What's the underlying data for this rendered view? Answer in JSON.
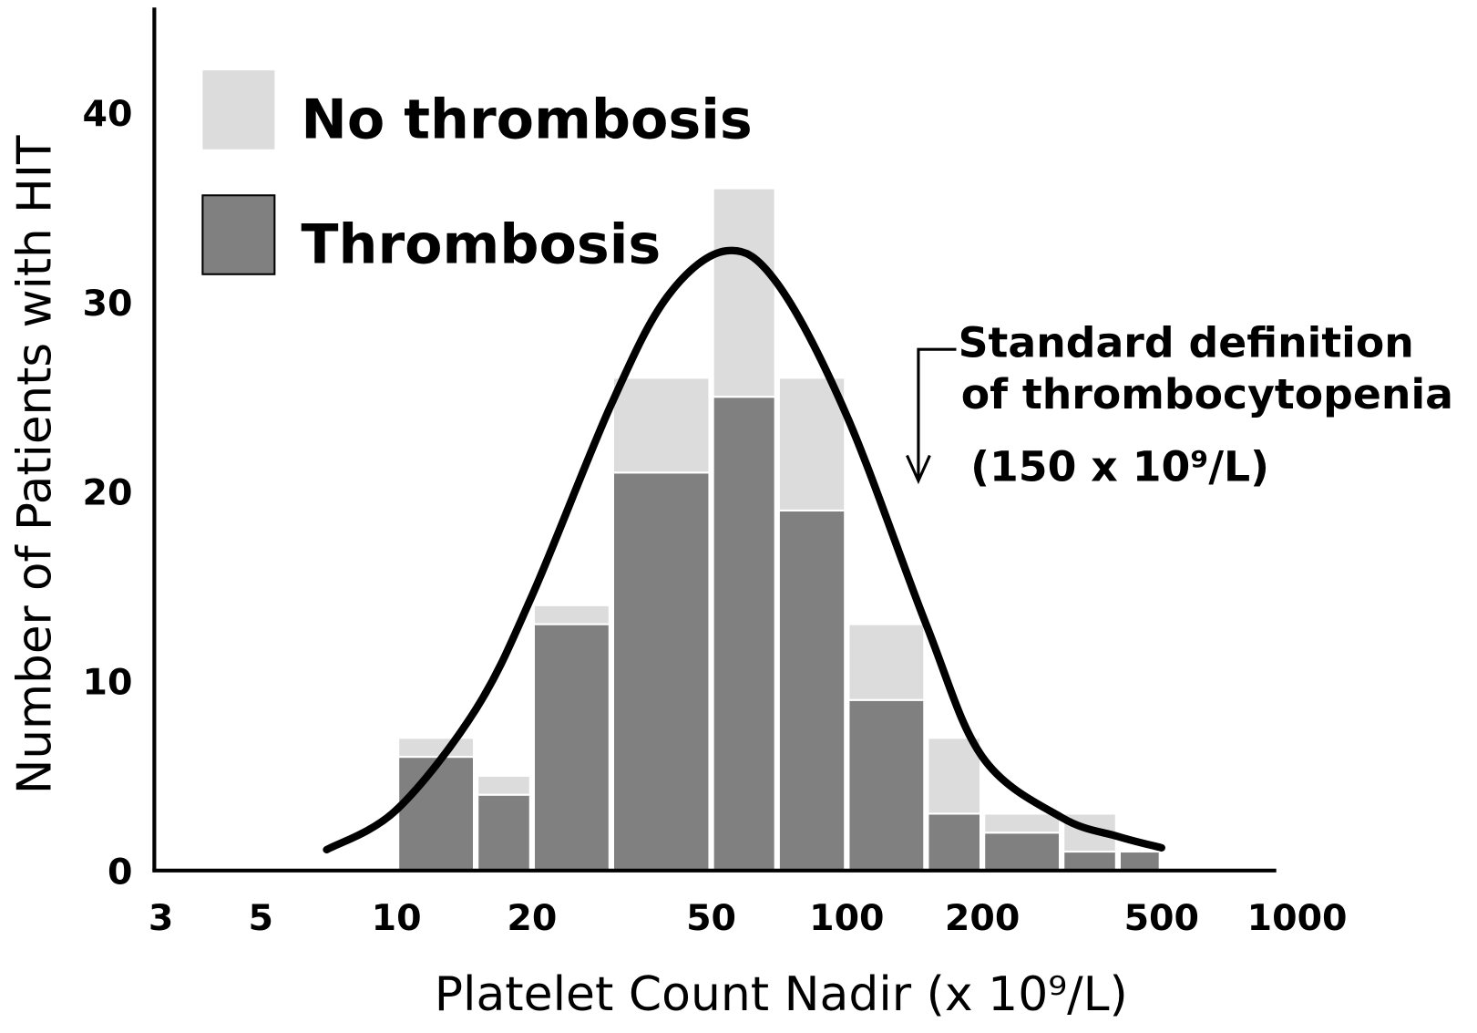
{
  "chart_data": {
    "type": "histogram",
    "bins": [
      10,
      15,
      20,
      30,
      50,
      70,
      100,
      150,
      200,
      300,
      400,
      500
    ],
    "series": [
      {
        "name": "Thrombosis",
        "color": "#808080",
        "values": [
          6,
          4,
          13,
          21,
          25,
          19,
          9,
          3,
          2,
          1,
          1
        ]
      },
      {
        "name": "No thrombosis",
        "color": "#dcdcdc",
        "values": [
          1,
          1,
          1,
          5,
          11,
          7,
          4,
          4,
          1,
          2,
          0
        ]
      }
    ],
    "curve": {
      "x": [
        7,
        10,
        15,
        20,
        30,
        40,
        54,
        70,
        100,
        150,
        200,
        300,
        400,
        500
      ],
      "y": [
        1.1,
        3.2,
        8.5,
        14.5,
        24.6,
        30.3,
        32.7,
        31,
        24,
        13,
        6,
        2.8,
        1.8,
        1.2
      ]
    },
    "xlabel": "Platelet Count Nadir (x 10⁹/L)",
    "ylabel": "Number of Patients with HIT",
    "xscale": "log",
    "xlim": [
      3,
      1000
    ],
    "xticks": [
      3,
      5,
      10,
      20,
      50,
      100,
      200,
      500,
      1000
    ],
    "ylim": [
      0,
      45
    ],
    "yticks": [
      0,
      10,
      20,
      30,
      40
    ],
    "grid": false,
    "annotation": [
      "Standard definition",
      "of thrombocytopenia",
      "(150 x 10⁹/L)"
    ]
  }
}
